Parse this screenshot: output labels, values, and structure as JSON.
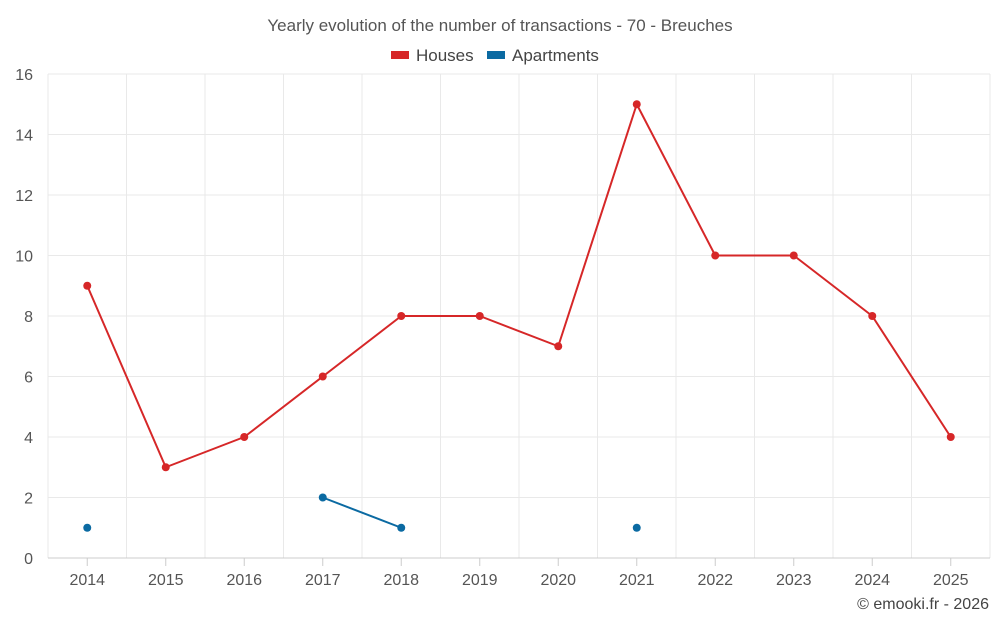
{
  "chart_data": {
    "type": "line",
    "title": "Yearly evolution of the number of transactions - 70 - Breuches",
    "categories": [
      "2014",
      "2015",
      "2016",
      "2017",
      "2018",
      "2019",
      "2020",
      "2021",
      "2022",
      "2023",
      "2024",
      "2025"
    ],
    "series": [
      {
        "name": "Houses",
        "color": "#d62728",
        "values": [
          9,
          3,
          4,
          6,
          8,
          8,
          7,
          15,
          10,
          10,
          8,
          4
        ]
      },
      {
        "name": "Apartments",
        "color": "#0b6aa2",
        "values": [
          1,
          null,
          null,
          2,
          1,
          null,
          null,
          1,
          null,
          null,
          null,
          null
        ]
      }
    ],
    "ylim": [
      0,
      16
    ],
    "yticks": [
      0,
      2,
      4,
      6,
      8,
      10,
      12,
      14,
      16
    ],
    "xlabel": "",
    "ylabel": "",
    "grid": true,
    "legend": "top-center"
  },
  "credit": "© emooki.fr - 2026"
}
